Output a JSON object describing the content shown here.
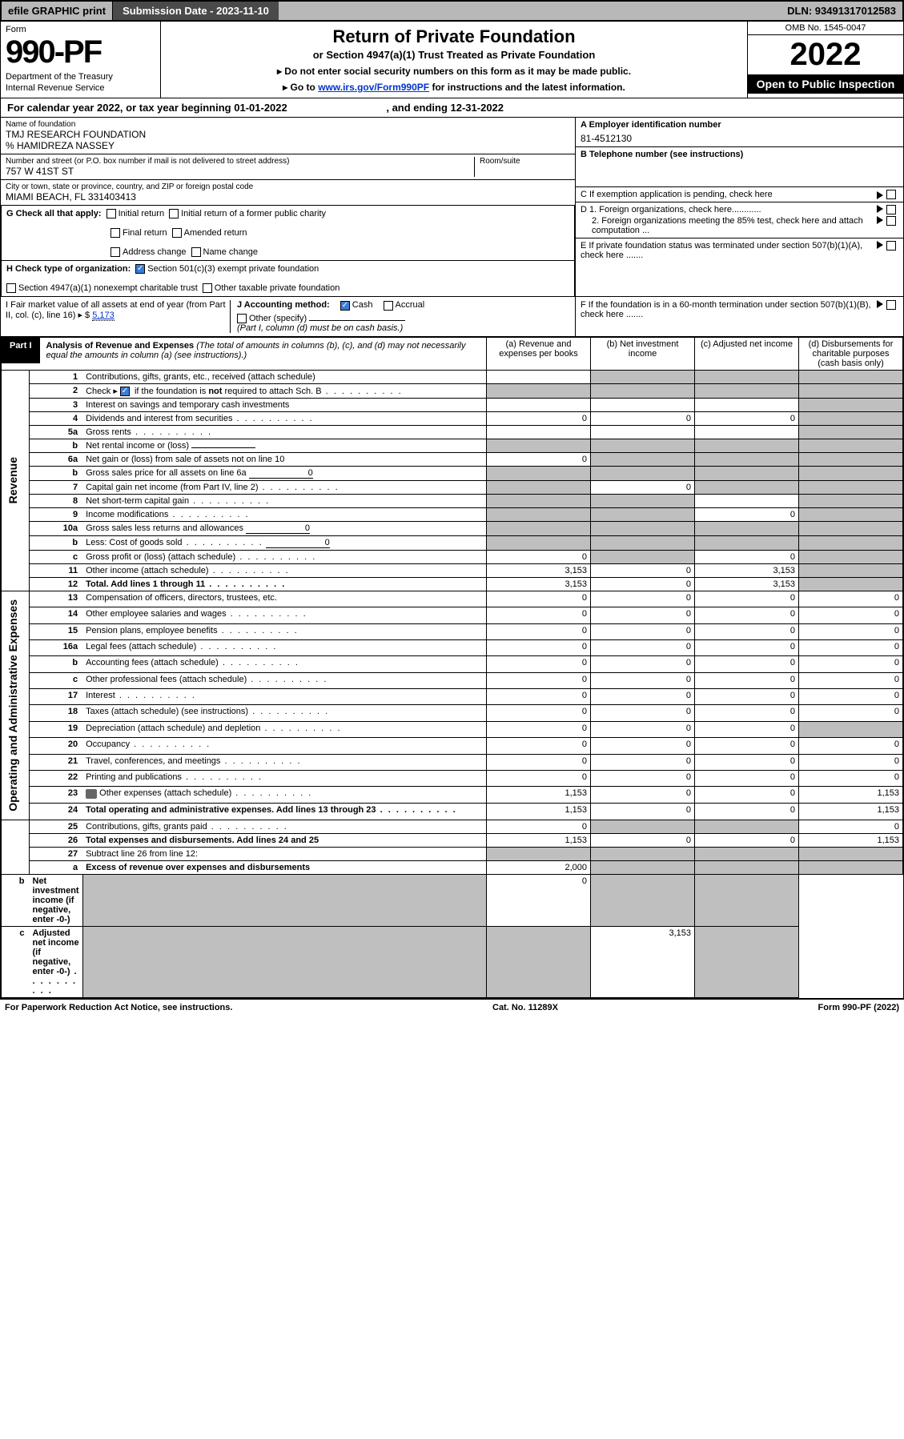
{
  "topbar": {
    "efile_label": "efile GRAPHIC print",
    "submission_label": "Submission Date - 2023-11-10",
    "dln_label": "DLN: 93491317012583"
  },
  "header": {
    "form_word": "Form",
    "form_number": "990-PF",
    "dept": "Department of the Treasury",
    "irs": "Internal Revenue Service",
    "title": "Return of Private Foundation",
    "subtitle": "or Section 4947(a)(1) Trust Treated as Private Foundation",
    "note1_prefix": "▸ Do not enter social security numbers on this form as it may be made public.",
    "note2_prefix": "▸ Go to ",
    "note2_link": "www.irs.gov/Form990PF",
    "note2_suffix": " for instructions and the latest information.",
    "omb": "OMB No. 1545-0047",
    "year": "2022",
    "inspection": "Open to Public Inspection"
  },
  "calyear": {
    "prefix": "For calendar year 2022, or tax year beginning ",
    "begin": "01-01-2022",
    "mid": " , and ending ",
    "end": "12-31-2022"
  },
  "info": {
    "name_label": "Name of foundation",
    "name": "TMJ RESEARCH FOUNDATION",
    "care_of": "% HAMIDREZA NASSEY",
    "addr_label": "Number and street (or P.O. box number if mail is not delivered to street address)",
    "addr": "757 W 41ST ST",
    "room_label": "Room/suite",
    "city_label": "City or town, state or province, country, and ZIP or foreign postal code",
    "city": "MIAMI BEACH, FL 331403413",
    "ein_label": "A Employer identification number",
    "ein": "81-4512130",
    "tel_label": "B Telephone number (see instructions)",
    "c_label": "C If exemption application is pending, check here",
    "d1_label": "D 1. Foreign organizations, check here............",
    "d2_label": "2. Foreign organizations meeting the 85% test, check here and attach computation ...",
    "e_label": "E If private foundation status was terminated under section 507(b)(1)(A), check here .......",
    "f_label": "F If the foundation is in a 60-month termination under section 507(b)(1)(B), check here .......",
    "g_label": "G Check all that apply:",
    "g_opts": [
      "Initial return",
      "Initial return of a former public charity",
      "Final return",
      "Amended return",
      "Address change",
      "Name change"
    ],
    "h_label": "H Check type of organization:",
    "h_501": "Section 501(c)(3) exempt private foundation",
    "h_4947": "Section 4947(a)(1) nonexempt charitable trust",
    "h_other": "Other taxable private foundation",
    "i_label": "I Fair market value of all assets at end of year (from Part II, col. (c), line 16) ▸ $",
    "i_val": "5,173",
    "j_label": "J Accounting method:",
    "j_cash": "Cash",
    "j_accrual": "Accrual",
    "j_other": "Other (specify)",
    "j_note": "(Part I, column (d) must be on cash basis.)"
  },
  "part1": {
    "label": "Part I",
    "title": "Analysis of Revenue and Expenses",
    "title_note": "(The total of amounts in columns (b), (c), and (d) may not necessarily equal the amounts in column (a) (see instructions).)",
    "cols": {
      "a": "(a) Revenue and expenses per books",
      "b": "(b) Net investment income",
      "c": "(c) Adjusted net income",
      "d": "(d) Disbursements for charitable purposes (cash basis only)"
    },
    "sections": {
      "rev": "Revenue",
      "exp": "Operating and Administrative Expenses"
    },
    "rows": [
      {
        "n": "1",
        "d": "Contributions, gifts, grants, etc., received (attach schedule)",
        "a": "",
        "b": "shade",
        "c": "shade",
        "e": "shade"
      },
      {
        "n": "2",
        "d": "Check ▸ ☑ if the foundation is not required to attach Sch. B",
        "dots": true,
        "a": "shade",
        "b": "shade",
        "c": "shade",
        "e": "shade",
        "chk": true
      },
      {
        "n": "3",
        "d": "Interest on savings and temporary cash investments",
        "a": "",
        "b": "",
        "c": "",
        "e": "shade"
      },
      {
        "n": "4",
        "d": "Dividends and interest from securities",
        "dots": true,
        "a": "0",
        "b": "0",
        "c": "0",
        "e": "shade"
      },
      {
        "n": "5a",
        "d": "Gross rents",
        "dots": true,
        "a": "",
        "b": "",
        "c": "",
        "e": "shade"
      },
      {
        "n": "b",
        "d": "Net rental income or (loss)",
        "inline": "",
        "a": "shade",
        "b": "shade",
        "c": "shade",
        "e": "shade"
      },
      {
        "n": "6a",
        "d": "Net gain or (loss) from sale of assets not on line 10",
        "a": "0",
        "b": "shade",
        "c": "shade",
        "e": "shade"
      },
      {
        "n": "b",
        "d": "Gross sales price for all assets on line 6a",
        "inline": "0",
        "a": "shade",
        "b": "shade",
        "c": "shade",
        "e": "shade"
      },
      {
        "n": "7",
        "d": "Capital gain net income (from Part IV, line 2)",
        "dots": true,
        "a": "shade",
        "b": "0",
        "c": "shade",
        "e": "shade"
      },
      {
        "n": "8",
        "d": "Net short-term capital gain",
        "dots": true,
        "a": "shade",
        "b": "shade",
        "c": "",
        "e": "shade"
      },
      {
        "n": "9",
        "d": "Income modifications",
        "dots": true,
        "a": "shade",
        "b": "shade",
        "c": "0",
        "e": "shade"
      },
      {
        "n": "10a",
        "d": "Gross sales less returns and allowances",
        "inline": "0",
        "a": "shade",
        "b": "shade",
        "c": "shade",
        "e": "shade"
      },
      {
        "n": "b",
        "d": "Less: Cost of goods sold",
        "dots": true,
        "inline": "0",
        "a": "shade",
        "b": "shade",
        "c": "shade",
        "e": "shade"
      },
      {
        "n": "c",
        "d": "Gross profit or (loss) (attach schedule)",
        "dots": true,
        "a": "0",
        "b": "shade",
        "c": "0",
        "e": "shade"
      },
      {
        "n": "11",
        "d": "Other income (attach schedule)",
        "dots": true,
        "a": "3,153",
        "b": "0",
        "c": "3,153",
        "e": "shade"
      },
      {
        "n": "12",
        "d": "Total. Add lines 1 through 11",
        "dots": true,
        "bold": true,
        "a": "3,153",
        "b": "0",
        "c": "3,153",
        "e": "shade"
      },
      {
        "n": "13",
        "d": "Compensation of officers, directors, trustees, etc.",
        "a": "0",
        "b": "0",
        "c": "0",
        "e": "0",
        "sec": "exp"
      },
      {
        "n": "14",
        "d": "Other employee salaries and wages",
        "dots": true,
        "a": "0",
        "b": "0",
        "c": "0",
        "e": "0"
      },
      {
        "n": "15",
        "d": "Pension plans, employee benefits",
        "dots": true,
        "a": "0",
        "b": "0",
        "c": "0",
        "e": "0"
      },
      {
        "n": "16a",
        "d": "Legal fees (attach schedule)",
        "dots": true,
        "a": "0",
        "b": "0",
        "c": "0",
        "e": "0"
      },
      {
        "n": "b",
        "d": "Accounting fees (attach schedule)",
        "dots": true,
        "a": "0",
        "b": "0",
        "c": "0",
        "e": "0"
      },
      {
        "n": "c",
        "d": "Other professional fees (attach schedule)",
        "dots": true,
        "a": "0",
        "b": "0",
        "c": "0",
        "e": "0"
      },
      {
        "n": "17",
        "d": "Interest",
        "dots": true,
        "a": "0",
        "b": "0",
        "c": "0",
        "e": "0"
      },
      {
        "n": "18",
        "d": "Taxes (attach schedule) (see instructions)",
        "dots": true,
        "a": "0",
        "b": "0",
        "c": "0",
        "e": "0"
      },
      {
        "n": "19",
        "d": "Depreciation (attach schedule) and depletion",
        "dots": true,
        "a": "0",
        "b": "0",
        "c": "0",
        "e": "shade"
      },
      {
        "n": "20",
        "d": "Occupancy",
        "dots": true,
        "a": "0",
        "b": "0",
        "c": "0",
        "e": "0"
      },
      {
        "n": "21",
        "d": "Travel, conferences, and meetings",
        "dots": true,
        "a": "0",
        "b": "0",
        "c": "0",
        "e": "0"
      },
      {
        "n": "22",
        "d": "Printing and publications",
        "dots": true,
        "a": "0",
        "b": "0",
        "c": "0",
        "e": "0"
      },
      {
        "n": "23",
        "d": "Other expenses (attach schedule)",
        "dots": true,
        "a": "1,153",
        "b": "0",
        "c": "0",
        "e": "1,153",
        "icon": true
      },
      {
        "n": "24",
        "d": "Total operating and administrative expenses. Add lines 13 through 23",
        "dots": true,
        "bold": true,
        "a": "1,153",
        "b": "0",
        "c": "0",
        "e": "1,153"
      },
      {
        "n": "25",
        "d": "Contributions, gifts, grants paid",
        "dots": true,
        "a": "0",
        "b": "shade",
        "c": "shade",
        "e": "0"
      },
      {
        "n": "26",
        "d": "Total expenses and disbursements. Add lines 24 and 25",
        "bold": true,
        "a": "1,153",
        "b": "0",
        "c": "0",
        "e": "1,153"
      },
      {
        "n": "27",
        "d": "Subtract line 26 from line 12:",
        "a": "shade",
        "b": "shade",
        "c": "shade",
        "e": "shade",
        "sec": "none"
      },
      {
        "n": "a",
        "d": "Excess of revenue over expenses and disbursements",
        "bold": true,
        "a": "2,000",
        "b": "shade",
        "c": "shade",
        "e": "shade"
      },
      {
        "n": "b",
        "d": "Net investment income (if negative, enter -0-)",
        "bold": true,
        "a": "shade",
        "b": "0",
        "c": "shade",
        "e": "shade"
      },
      {
        "n": "c",
        "d": "Adjusted net income (if negative, enter -0-)",
        "dots": true,
        "bold": true,
        "a": "shade",
        "b": "shade",
        "c": "3,153",
        "e": "shade"
      }
    ]
  },
  "footer": {
    "left": "For Paperwork Reduction Act Notice, see instructions.",
    "mid": "Cat. No. 11289X",
    "right": "Form 990-PF (2022)"
  },
  "colors": {
    "header_gray": "#b8b8b8",
    "dark_gray": "#4a4a4a",
    "check_blue": "#3b7dd8",
    "link_blue": "#0033cc",
    "shade_gray": "#bfbfbf"
  }
}
